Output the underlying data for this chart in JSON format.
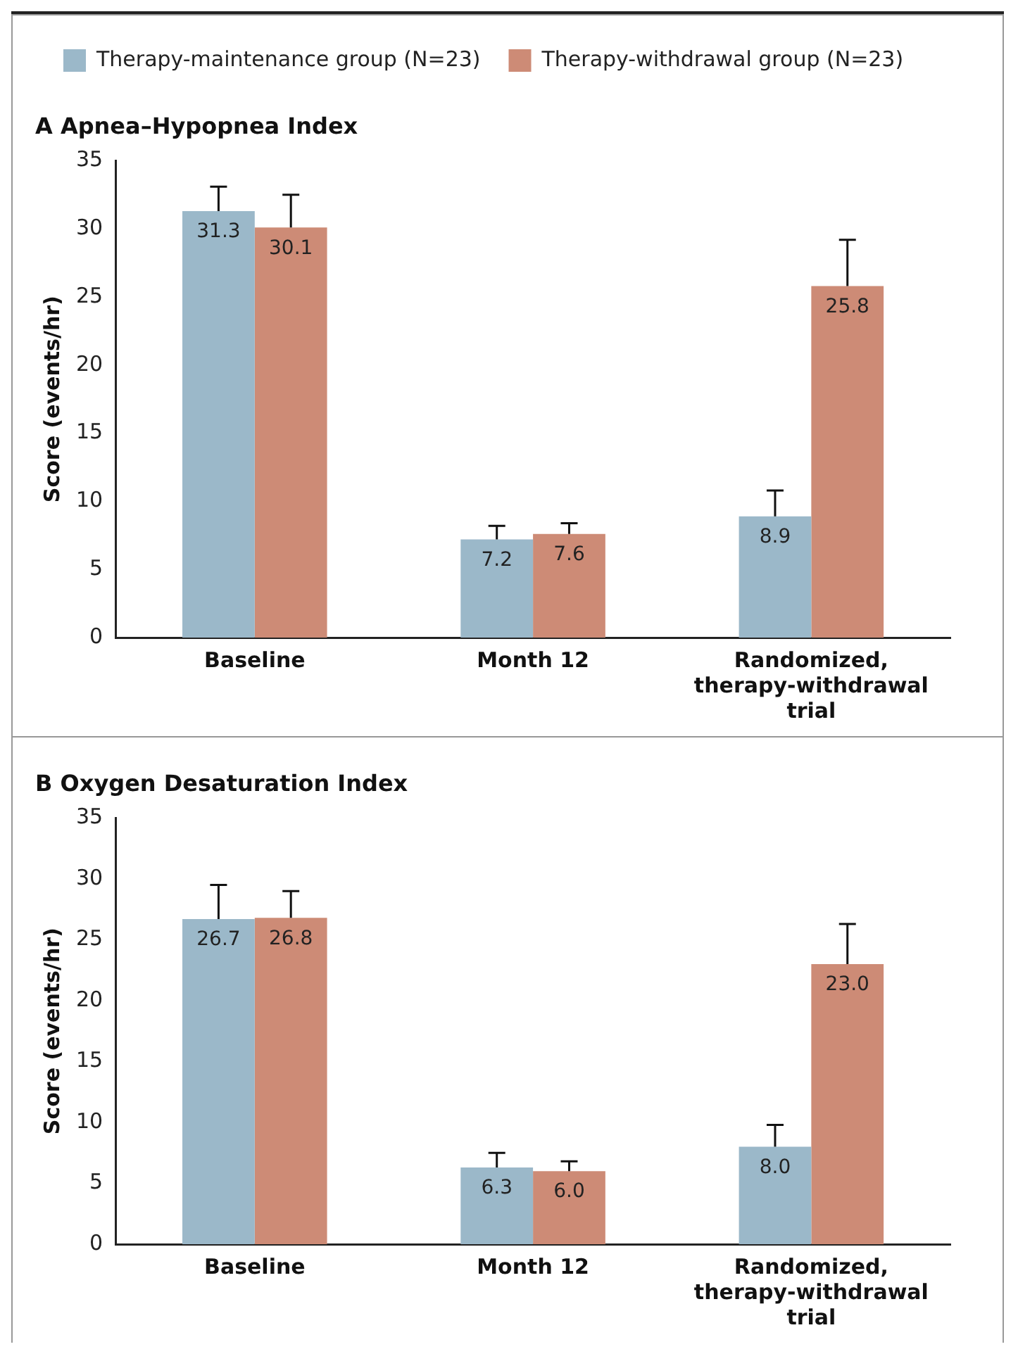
{
  "chart_data": [
    {
      "type": "bar",
      "title": "A Apnea–Hypopnea Index",
      "ylabel": "Score (events/hr)",
      "categories": [
        "Baseline",
        "Month 12",
        "Randomized, therapy-withdrawal trial"
      ],
      "series": [
        {
          "name": "Therapy-maintenance group (N=23)",
          "color": "#9bb8c9",
          "values": [
            31.3,
            7.2,
            8.9
          ],
          "value_labels": [
            "31.3",
            "7.2",
            "8.9"
          ],
          "errors": [
            [
              31.3,
              33.1
            ],
            [
              7.2,
              8.2
            ],
            [
              8.9,
              10.8
            ]
          ]
        },
        {
          "name": "Therapy-withdrawal group (N=23)",
          "color": "#cd8b76",
          "values": [
            30.1,
            7.6,
            25.8
          ],
          "value_labels": [
            "30.1",
            "7.6",
            "25.8"
          ],
          "errors": [
            [
              30.1,
              32.5
            ],
            [
              7.6,
              8.4
            ],
            [
              25.8,
              29.2
            ]
          ]
        }
      ],
      "ylim": [
        0,
        35
      ],
      "yticks": [
        0,
        5,
        10,
        15,
        20,
        25,
        30,
        35
      ],
      "grid": false,
      "legend": "top"
    },
    {
      "type": "bar",
      "title": "B Oxygen Desaturation Index",
      "ylabel": "Score (events/hr)",
      "categories": [
        "Baseline",
        "Month 12",
        "Randomized, therapy-withdrawal trial"
      ],
      "series": [
        {
          "color": "#9bb8c9",
          "values": [
            26.7,
            6.3,
            8
          ],
          "value_labels": [
            "26.7",
            "6.3",
            "8.0"
          ],
          "errors": [
            [
              26.7,
              29.5
            ],
            [
              6.3,
              7.5
            ],
            [
              8,
              9.8
            ]
          ]
        },
        {
          "color": "#cd8b76",
          "values": [
            26.8,
            6,
            23
          ],
          "value_labels": [
            "26.8",
            "6.0",
            "23.0"
          ],
          "errors": [
            [
              26.8,
              29
            ],
            [
              6,
              6.8
            ],
            [
              23,
              26.3
            ]
          ]
        }
      ],
      "ylim": [
        0,
        35
      ],
      "yticks": [
        0,
        5,
        10,
        15,
        20,
        25,
        30,
        35
      ],
      "grid": false,
      "legend": false
    }
  ]
}
